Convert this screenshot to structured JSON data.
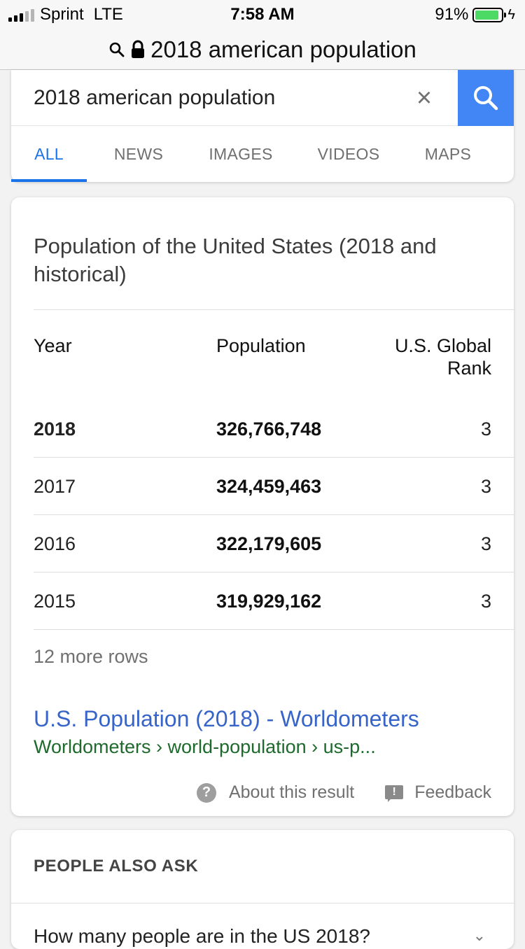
{
  "status_bar": {
    "carrier": "Sprint",
    "network": "LTE",
    "time": "7:58 AM",
    "battery_percent": "91%",
    "battery_level": 0.91
  },
  "url_bar": {
    "text": "2018 american population"
  },
  "search": {
    "query": "2018 american population",
    "clear_label": "×",
    "tabs": [
      {
        "label": "ALL",
        "active": true
      },
      {
        "label": "NEWS",
        "active": false
      },
      {
        "label": "IMAGES",
        "active": false
      },
      {
        "label": "VIDEOS",
        "active": false
      },
      {
        "label": "MAPS",
        "active": false
      }
    ]
  },
  "result": {
    "title": "Population of the United States (2018 and historical)",
    "columns": [
      "Year",
      "Population",
      "U.S. Global Rank"
    ],
    "rows": [
      {
        "year": "2018",
        "population": "326,766,748",
        "rank": "3"
      },
      {
        "year": "2017",
        "population": "324,459,463",
        "rank": "3"
      },
      {
        "year": "2016",
        "population": "322,179,605",
        "rank": "3"
      },
      {
        "year": "2015",
        "population": "319,929,162",
        "rank": "3"
      }
    ],
    "more_rows": "12 more rows",
    "link_title": "U.S. Population (2018) - Worldometers",
    "link_url": "Worldometers › world-population › us-p...",
    "about_label": "About this result",
    "feedback_label": "Feedback"
  },
  "people_also_ask": {
    "title": "PEOPLE ALSO ASK",
    "first_question": "How many people are in the US 2018?"
  },
  "colors": {
    "accent": "#1a73e8",
    "search_button": "#4285f4",
    "link": "#3764c8",
    "url_green": "#1e6a2c",
    "battery": "#4cd964"
  }
}
